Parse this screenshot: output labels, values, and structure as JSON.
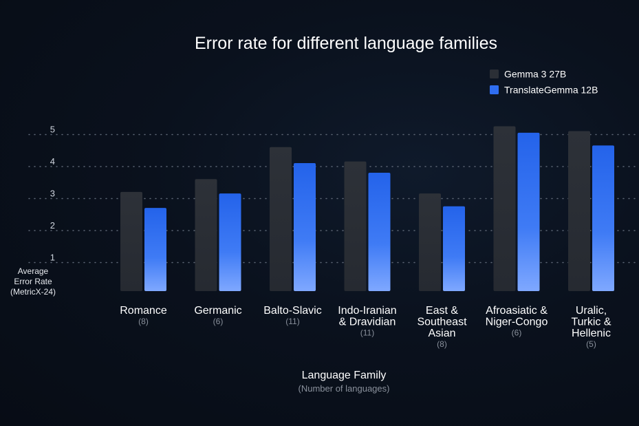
{
  "chart_data": {
    "type": "bar",
    "title": "Error rate for different language families",
    "xlabel": "Language Family",
    "xlabel_sub": "(Number of languages)",
    "ylabel": [
      "Average",
      "Error Rate",
      "(MetricX-24)"
    ],
    "ylim": [
      0,
      5
    ],
    "yticks": [
      1,
      2,
      3,
      4,
      5
    ],
    "grid": true,
    "legend_position": "top-right",
    "categories": [
      {
        "label": [
          "Romance"
        ],
        "count": "(8)"
      },
      {
        "label": [
          "Germanic"
        ],
        "count": "(6)"
      },
      {
        "label": [
          "Balto-Slavic"
        ],
        "count": "(11)"
      },
      {
        "label": [
          "Indo-Iranian",
          "& Dravidian"
        ],
        "count": "(11)"
      },
      {
        "label": [
          "East &",
          "Southeast",
          "Asian"
        ],
        "count": "(8)"
      },
      {
        "label": [
          "Afroasiatic &",
          "Niger-Congo"
        ],
        "count": "(6)"
      },
      {
        "label": [
          "Uralic,",
          "Turkic &",
          "Hellenic"
        ],
        "count": "(5)"
      }
    ],
    "series": [
      {
        "name": "Gemma 3 27B",
        "color": "#2b2f36",
        "values": [
          3.1,
          3.5,
          4.5,
          4.05,
          3.05,
          5.15,
          5.0
        ]
      },
      {
        "name": "TranslateGemma 12B",
        "color": "#2f6df0",
        "values": [
          2.6,
          3.05,
          4.0,
          3.7,
          2.65,
          4.95,
          4.55
        ]
      }
    ]
  }
}
